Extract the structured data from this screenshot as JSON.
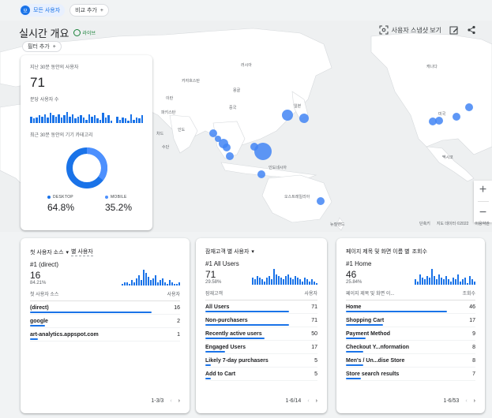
{
  "topbar": {
    "all_users": "모든 사용자",
    "compare": "비교 추가"
  },
  "header": {
    "title": "실시간 개요",
    "live_label": "라이브",
    "filter": "필터 추가",
    "snapshot": "사용자 스냅샷 보기"
  },
  "colors": {
    "accent": "#1a73e8",
    "live": "#188038"
  },
  "map": {
    "zoom_in": "+",
    "zoom_out": "−",
    "shortcuts": "단축키",
    "map_data": "지도 데이터 ©2022",
    "terms": "이용약관",
    "labels": {
      "russia": "러시아",
      "mongolia": "몽골",
      "china": "중국",
      "india": "인도",
      "indonesia": "인도네시아",
      "australia": "오스트레일리아",
      "new_zealand": "뉴질랜드",
      "japan": "일본",
      "canada": "캐나다",
      "usa": "미국",
      "mexico": "멕시코",
      "pakistan": "파키스탄",
      "iran": "이란",
      "sudan": "수단",
      "chad": "차드",
      "kazakhstan": "카자흐스탄"
    }
  },
  "realtime": {
    "users_30min_label": "지난 30분 동안의 사용자",
    "users_30min": "71",
    "per_min_label": "분당 사용자 수",
    "per_min_bars": [
      6,
      4,
      5,
      7,
      6,
      8,
      5,
      9,
      7,
      6,
      8,
      5,
      7,
      10,
      6,
      8,
      4,
      6,
      7,
      5,
      3,
      8,
      6,
      7,
      4,
      3,
      9,
      5,
      7,
      2,
      0,
      6,
      3,
      5,
      4,
      2,
      8,
      3,
      5,
      4,
      7
    ],
    "device_label": "최근 30분 동안의 기기 카테고리",
    "desktop_label": "DESKTOP",
    "desktop_value": "64.8%",
    "desktop_fraction": 0.648,
    "mobile_label": "MOBILE",
    "mobile_value": "35.2%",
    "mobile_fraction": 0.352
  },
  "cards": [
    {
      "title_a": "첫 사용자 소스",
      "title_b": "별 사용자",
      "rank": "#1",
      "top": "(direct)",
      "top_count": "16",
      "top_pct": "84.21%",
      "col_a": "첫 사용자 소스",
      "col_b": "사용자",
      "mini_bars": [
        1,
        2,
        2,
        1,
        3,
        2,
        4,
        6,
        3,
        9,
        7,
        5,
        3,
        4,
        6,
        2,
        3,
        4,
        2,
        1,
        3,
        2,
        1,
        1,
        2
      ],
      "max": 16,
      "rows": [
        {
          "name": "(direct)",
          "count": "16",
          "value": 16
        },
        {
          "name": "google",
          "count": "2",
          "value": 2
        },
        {
          "name": "art-analytics.appspot.com",
          "count": "1",
          "value": 1
        }
      ],
      "pager": "1-3/3"
    },
    {
      "title_a": "잠재고객 별 사용자",
      "title_b": "",
      "rank": "#1",
      "top": "All Users",
      "top_count": "71",
      "top_pct": "29.58%",
      "col_a": "잠재고객",
      "col_b": "사용자",
      "mini_bars": [
        4,
        3,
        5,
        4,
        3,
        2,
        4,
        5,
        3,
        9,
        6,
        5,
        4,
        3,
        5,
        6,
        4,
        3,
        5,
        4,
        3,
        2,
        4,
        3,
        2,
        3,
        2,
        1
      ],
      "max": 71,
      "rows": [
        {
          "name": "All Users",
          "count": "71",
          "value": 71
        },
        {
          "name": "Non-purchasers",
          "count": "71",
          "value": 71
        },
        {
          "name": "Recently active users",
          "count": "50",
          "value": 50
        },
        {
          "name": "Engaged Users",
          "count": "17",
          "value": 17
        },
        {
          "name": "Likely 7-day purchasers",
          "count": "5",
          "value": 5
        },
        {
          "name": "Add to Cart",
          "count": "5",
          "value": 5
        }
      ],
      "pager": "1-6/14"
    },
    {
      "title_a": "페이지 제목 및 화면 이름 별",
      "title_b": "조회수",
      "rank": "#1",
      "top": "Home",
      "top_count": "46",
      "top_pct": "25.84%",
      "col_a": "페이지 제목 및 화면 이...",
      "col_b": "조회수",
      "mini_bars": [
        3,
        2,
        6,
        4,
        3,
        5,
        4,
        9,
        5,
        3,
        6,
        4,
        3,
        5,
        3,
        2,
        4,
        3,
        6,
        2,
        3,
        4,
        1,
        5,
        3,
        2
      ],
      "max": 46,
      "rows": [
        {
          "name": "Home",
          "count": "46",
          "value": 46
        },
        {
          "name": "Shopping Cart",
          "count": "17",
          "value": 17
        },
        {
          "name": "Payment Method",
          "count": "9",
          "value": 9
        },
        {
          "name": "Checkout Y...nformation",
          "count": "8",
          "value": 8
        },
        {
          "name": "Men's / Un...dise Store",
          "count": "8",
          "value": 8
        },
        {
          "name": "Store search results",
          "count": "7",
          "value": 7
        }
      ],
      "pager": "1-6/53"
    }
  ]
}
